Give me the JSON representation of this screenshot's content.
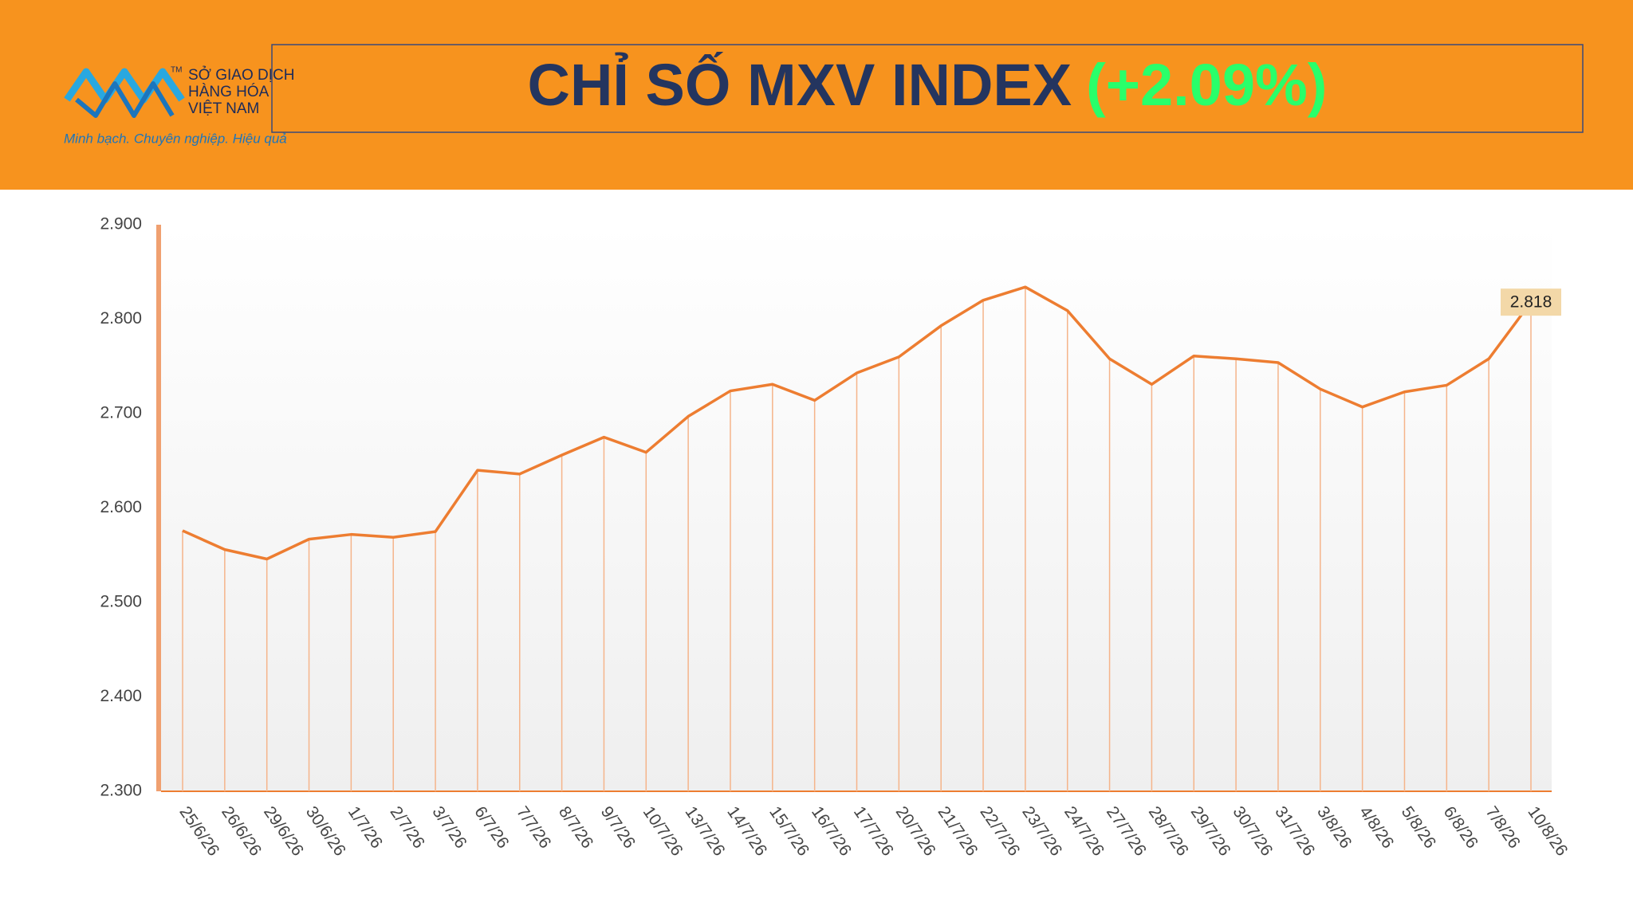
{
  "header": {
    "org_name": [
      "SỞ GIAO DỊCH",
      "HÀNG HÓA",
      "VIỆT NAM"
    ],
    "tm": "TM",
    "slogan": "Minh bạch. Chuyên nghiệp. Hiệu quả",
    "title": "CHỈ SỐ MXV INDEX",
    "change": "(+2.09%)"
  },
  "chart_data": {
    "type": "line",
    "categories": [
      "25/6/26",
      "26/6/26",
      "29/6/26",
      "30/6/26",
      "1/7/26",
      "2/7/26",
      "3/7/26",
      "6/7/26",
      "7/7/26",
      "8/7/26",
      "9/7/26",
      "10/7/26",
      "13/7/26",
      "14/7/26",
      "15/7/26",
      "16/7/26",
      "17/7/26",
      "20/7/26",
      "21/7/26",
      "22/7/26",
      "23/7/26",
      "24/7/26",
      "27/7/26",
      "28/7/26",
      "29/7/26",
      "30/7/26",
      "31/7/26",
      "3/8/26",
      "4/8/26",
      "5/8/26",
      "6/8/26",
      "7/8/26",
      "10/8/26"
    ],
    "values": [
      2576,
      2556,
      2546,
      2567,
      2572,
      2569,
      2575,
      2640,
      2636,
      2656,
      2675,
      2659,
      2697,
      2724,
      2731,
      2714,
      2743,
      2760,
      2793,
      2820,
      2834,
      2809,
      2758,
      2731,
      2761,
      2758,
      2754,
      2726,
      2707,
      2723,
      2730,
      2758,
      2818
    ],
    "value_labels": [
      null,
      null,
      null,
      null,
      null,
      null,
      null,
      null,
      null,
      null,
      null,
      null,
      null,
      null,
      null,
      null,
      null,
      null,
      null,
      null,
      null,
      null,
      null,
      null,
      null,
      null,
      null,
      null,
      null,
      null,
      null,
      null,
      "2.818"
    ],
    "color": "#ed7d31",
    "ylim": [
      2300,
      2900
    ],
    "yticks": [
      {
        "value": 2300,
        "label": "2.300"
      },
      {
        "value": 2400,
        "label": "2.400"
      },
      {
        "value": 2500,
        "label": "2.500"
      },
      {
        "value": 2600,
        "label": "2.600"
      },
      {
        "value": 2700,
        "label": "2.700"
      },
      {
        "value": 2800,
        "label": "2.800"
      },
      {
        "value": 2900,
        "label": "2.900"
      }
    ],
    "drop_lines": true
  }
}
